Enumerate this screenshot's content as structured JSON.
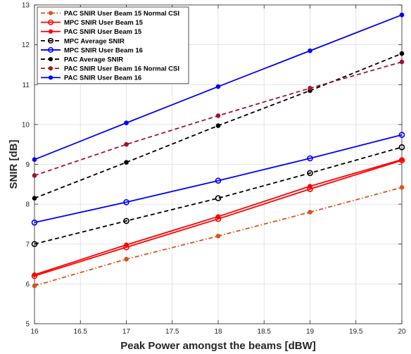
{
  "chart_data": {
    "type": "line",
    "title": "",
    "xlabel": "Peak Power amongst the beams [dBW]",
    "ylabel": "SNIR [dB]",
    "xlim": [
      16,
      20
    ],
    "ylim": [
      5,
      13
    ],
    "xticks": [
      "16",
      "16.5",
      "17",
      "17.5",
      "18",
      "18.5",
      "19",
      "19.5",
      "20"
    ],
    "yticks": [
      "5",
      "6",
      "7",
      "8",
      "9",
      "10",
      "11",
      "12",
      "13"
    ],
    "grid": true,
    "legend_position": "top-left",
    "x": [
      16,
      17,
      18,
      19,
      20
    ],
    "series": [
      {
        "name": "PAC SNIR User Beam 15 Normal CSI",
        "values": [
          5.95,
          6.62,
          7.2,
          7.8,
          8.42
        ],
        "color": "#d95319",
        "dash": "dashdot",
        "marker": "dot"
      },
      {
        "name": "MPC SNIR User Beam 15",
        "values": [
          6.2,
          6.92,
          7.63,
          8.38,
          9.1
        ],
        "color": "#ff0000",
        "dash": "solid",
        "marker": "circle"
      },
      {
        "name": "PAC SNIR User Beam 15",
        "values": [
          6.23,
          6.98,
          7.69,
          8.45,
          9.12
        ],
        "color": "#ff0000",
        "dash": "solid",
        "marker": "dot"
      },
      {
        "name": "MPC Average SNIR",
        "values": [
          7.0,
          7.58,
          8.15,
          8.78,
          9.43
        ],
        "color": "#000000",
        "dash": "dashed",
        "marker": "circle"
      },
      {
        "name": "MPC SNIR User Beam 16",
        "values": [
          7.54,
          8.05,
          8.59,
          9.15,
          9.74
        ],
        "color": "#0000ff",
        "dash": "solid",
        "marker": "circle"
      },
      {
        "name": "PAC Average SNIR",
        "values": [
          8.15,
          9.05,
          9.97,
          10.85,
          11.78
        ],
        "color": "#000000",
        "dash": "dashed",
        "marker": "dot"
      },
      {
        "name": "PAC SNIR User Beam 16 Normal CSI",
        "values": [
          8.72,
          9.5,
          10.22,
          10.91,
          11.57
        ],
        "color": "#a2142f",
        "dash": "dashed",
        "marker": "dot"
      },
      {
        "name": "PAC SNIR User Beam 16",
        "values": [
          9.12,
          10.04,
          10.95,
          11.85,
          12.75
        ],
        "color": "#0000ff",
        "dash": "solid",
        "marker": "dot"
      }
    ]
  }
}
